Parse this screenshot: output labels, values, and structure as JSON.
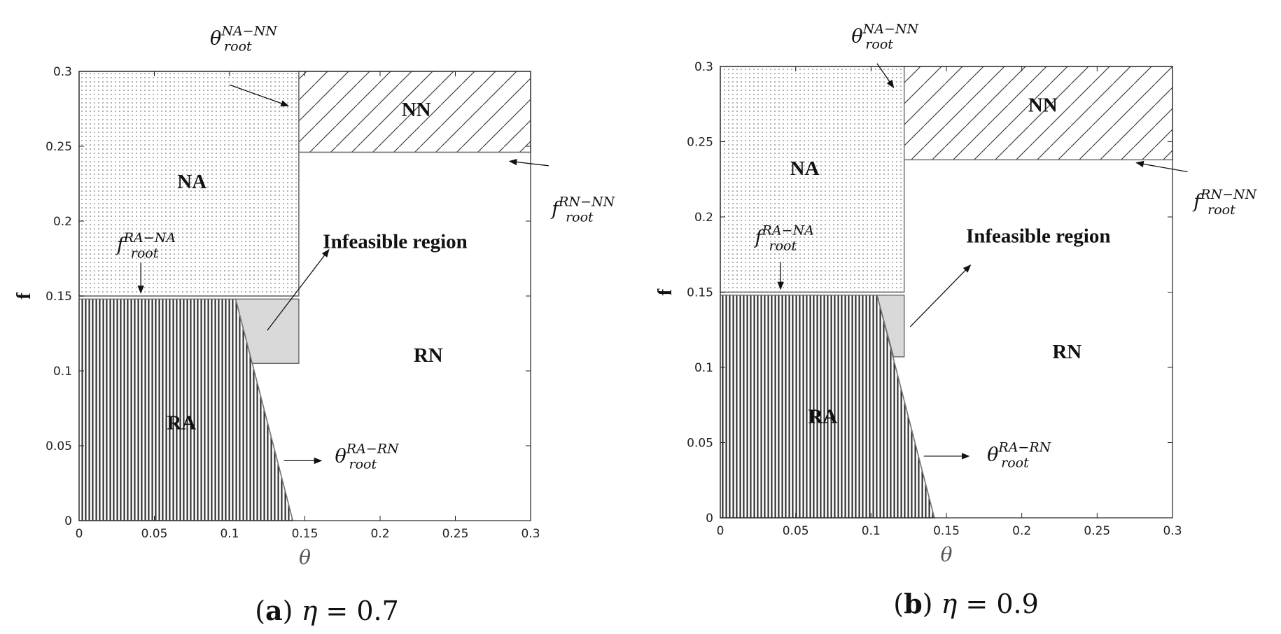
{
  "chart_data": [
    {
      "type": "region-map",
      "xlabel": "θ",
      "ylabel": "f",
      "xlim": [
        0,
        0.3
      ],
      "ylim": [
        0,
        0.3
      ],
      "x_ticks": [
        0,
        0.05,
        0.1,
        0.15,
        0.2,
        0.25,
        0.3
      ],
      "y_ticks": [
        0,
        0.05,
        0.1,
        0.15,
        0.2,
        0.25,
        0.3
      ],
      "x_tick_labels": [
        "0",
        "0.05",
        "0.1",
        "0.15",
        "0.2",
        "0.25",
        "0.3"
      ],
      "y_tick_labels": [
        "0",
        "0.05",
        "0.1",
        "0.15",
        "0.2",
        "0.25",
        "0.3"
      ],
      "grid": false,
      "caption": {
        "letter": "a",
        "param": "η",
        "value": "0.7"
      },
      "regions": [
        {
          "name": "NA",
          "pattern": "dots",
          "polygon": [
            [
              0,
              0.15
            ],
            [
              0.146,
              0.15
            ],
            [
              0.146,
              0.3
            ],
            [
              0,
              0.3
            ]
          ]
        },
        {
          "name": "NN",
          "pattern": "diagonal-hatch",
          "polygon": [
            [
              0.146,
              0.246
            ],
            [
              0.3,
              0.246
            ],
            [
              0.3,
              0.3
            ],
            [
              0.146,
              0.3
            ]
          ]
        },
        {
          "name": "RA",
          "pattern": "vertical-lines",
          "polygon": [
            [
              0,
              0
            ],
            [
              0.142,
              0
            ],
            [
              0.104,
              0.148
            ],
            [
              0,
              0.148
            ]
          ]
        },
        {
          "name": "RN",
          "pattern": "none",
          "polygon": []
        },
        {
          "name": "infeasible",
          "pattern": "gray-fill",
          "polygon": [
            [
              0.104,
              0.148
            ],
            [
              0.146,
              0.148
            ],
            [
              0.146,
              0.105
            ],
            [
              0.115,
              0.105
            ]
          ]
        }
      ],
      "region_labels": [
        {
          "text": "NA",
          "x": 0.075,
          "y": 0.222
        },
        {
          "text": "NN",
          "x": 0.224,
          "y": 0.27
        },
        {
          "text": "RN",
          "x": 0.232,
          "y": 0.106
        },
        {
          "text": "RA",
          "x": 0.068,
          "y": 0.061
        }
      ],
      "callout": {
        "text": "Infeasible region",
        "x": 0.162,
        "y": 0.182
      },
      "boundaries": {
        "theta_root_NA_NN": 0.146,
        "f_root_RN_NN": 0.246,
        "f_root_RA_NA": 0.15,
        "theta_root_RA_RN": [
          [
            0.104,
            0.148
          ],
          [
            0.142,
            0.0
          ]
        ]
      },
      "annotations": [
        {
          "base": "θ",
          "sup": "NA−NN",
          "sub": "root",
          "label_at": [
            0.087,
            0.318
          ],
          "arrow": [
            [
              0.1,
              0.291
            ],
            [
              0.139,
              0.277
            ]
          ]
        },
        {
          "base": "f",
          "sup": "RN−NN",
          "sub": "root",
          "label_at": [
            0.314,
            0.204
          ],
          "arrow": [
            [
              0.312,
              0.237
            ],
            [
              0.286,
              0.24
            ]
          ]
        },
        {
          "base": "f",
          "sup": "RA−NA",
          "sub": "root",
          "label_at": [
            0.025,
            0.18
          ],
          "arrow": [
            [
              0.041,
              0.172
            ],
            [
              0.041,
              0.152
            ]
          ]
        },
        {
          "base": "θ",
          "sup": "RA−RN",
          "sub": "root",
          "label_at": [
            0.17,
            0.039
          ],
          "arrow": [
            [
              0.136,
              0.04
            ],
            [
              0.161,
              0.04
            ]
          ]
        },
        {
          "base": "",
          "sup": "",
          "sub": "",
          "label_at": [
            0,
            0
          ],
          "arrow": [
            [
              0.125,
              0.127
            ],
            [
              0.166,
              0.181
            ]
          ]
        }
      ]
    },
    {
      "type": "region-map",
      "xlabel": "θ",
      "ylabel": "f",
      "xlim": [
        0,
        0.3
      ],
      "ylim": [
        0,
        0.3
      ],
      "x_ticks": [
        0,
        0.05,
        0.1,
        0.15,
        0.2,
        0.25,
        0.3
      ],
      "y_ticks": [
        0,
        0.05,
        0.1,
        0.15,
        0.2,
        0.25,
        0.3
      ],
      "x_tick_labels": [
        "0",
        "0.05",
        "0.1",
        "0.15",
        "0.2",
        "0.25",
        "0.3"
      ],
      "y_tick_labels": [
        "0",
        "0.05",
        "0.1",
        "0.15",
        "0.2",
        "0.25",
        "0.3"
      ],
      "grid": false,
      "caption": {
        "letter": "b",
        "param": "η",
        "value": "0.9"
      },
      "regions": [
        {
          "name": "NA",
          "pattern": "dots",
          "polygon": [
            [
              0,
              0.15
            ],
            [
              0.122,
              0.15
            ],
            [
              0.122,
              0.3
            ],
            [
              0,
              0.3
            ]
          ]
        },
        {
          "name": "NN",
          "pattern": "diagonal-hatch",
          "polygon": [
            [
              0.122,
              0.238
            ],
            [
              0.3,
              0.238
            ],
            [
              0.3,
              0.3
            ],
            [
              0.122,
              0.3
            ]
          ]
        },
        {
          "name": "RA",
          "pattern": "vertical-lines",
          "polygon": [
            [
              0,
              0
            ],
            [
              0.142,
              0
            ],
            [
              0.104,
              0.148
            ],
            [
              0,
              0.148
            ]
          ]
        },
        {
          "name": "RN",
          "pattern": "none",
          "polygon": []
        },
        {
          "name": "infeasible",
          "pattern": "gray-fill",
          "polygon": [
            [
              0.104,
              0.148
            ],
            [
              0.122,
              0.148
            ],
            [
              0.122,
              0.107
            ],
            [
              0.115,
              0.107
            ]
          ]
        }
      ],
      "region_labels": [
        {
          "text": "NA",
          "x": 0.056,
          "y": 0.228
        },
        {
          "text": "NN",
          "x": 0.214,
          "y": 0.27
        },
        {
          "text": "RN",
          "x": 0.23,
          "y": 0.106
        },
        {
          "text": "RA",
          "x": 0.068,
          "y": 0.063
        }
      ],
      "callout": {
        "text": "Infeasible region",
        "x": 0.163,
        "y": 0.183
      },
      "boundaries": {
        "theta_root_NA_NN": 0.122,
        "f_root_RN_NN": 0.238,
        "f_root_RA_NA": 0.15,
        "theta_root_RA_RN": [
          [
            0.104,
            0.148
          ],
          [
            0.142,
            0.0
          ]
        ]
      },
      "annotations": [
        {
          "base": "θ",
          "sup": "NA−NN",
          "sub": "root",
          "label_at": [
            0.087,
            0.316
          ],
          "arrow": [
            [
              0.104,
              0.302
            ],
            [
              0.115,
              0.286
            ]
          ]
        },
        {
          "base": "f",
          "sup": "RN−NN",
          "sub": "root",
          "label_at": [
            0.314,
            0.206
          ],
          "arrow": [
            [
              0.31,
              0.23
            ],
            [
              0.276,
              0.236
            ]
          ]
        },
        {
          "base": "f",
          "sup": "RA−NA",
          "sub": "root",
          "label_at": [
            0.023,
            0.182
          ],
          "arrow": [
            [
              0.04,
              0.17
            ],
            [
              0.04,
              0.152
            ]
          ]
        },
        {
          "base": "θ",
          "sup": "RA−RN",
          "sub": "root",
          "label_at": [
            0.177,
            0.038
          ],
          "arrow": [
            [
              0.135,
              0.041
            ],
            [
              0.165,
              0.041
            ]
          ]
        },
        {
          "base": "",
          "sup": "",
          "sub": "",
          "label_at": [
            0,
            0
          ],
          "arrow": [
            [
              0.126,
              0.127
            ],
            [
              0.166,
              0.168
            ]
          ]
        }
      ]
    }
  ]
}
